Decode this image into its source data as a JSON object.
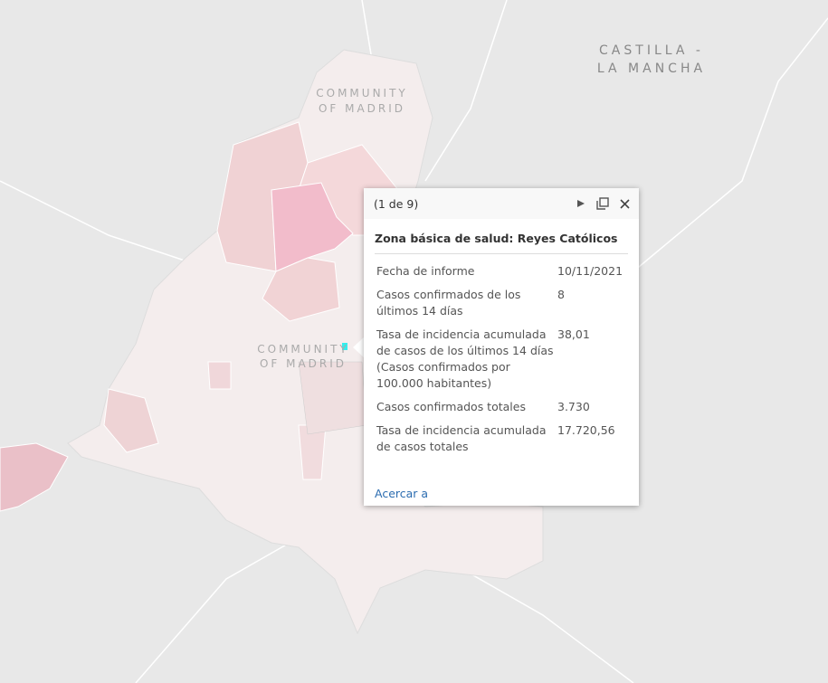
{
  "map_labels": {
    "neighbor_region": [
      "CASTILLA -",
      "LA MANCHA"
    ],
    "region": [
      "COMMUNITY",
      "OF MADRID"
    ],
    "region_center": [
      "COMMUNITY",
      "OF MADRID"
    ]
  },
  "popup": {
    "pager": "(1 de 9)",
    "title": "Zona básica de salud: Reyes Católicos",
    "fields": [
      [
        "Fecha de informe",
        "10/11/2021"
      ],
      [
        "Casos confirmados de los últimos 14 días",
        "8"
      ],
      [
        "Tasa de incidencia acumulada de casos de los últimos 14 días (Casos confirmados por 100.000 habitantes)",
        "38,01"
      ],
      [
        "Casos confirmados totales",
        "3.730"
      ],
      [
        "Tasa de incidencia acumulada de casos totales",
        "17.720,56"
      ]
    ],
    "link": "Acercar a"
  }
}
